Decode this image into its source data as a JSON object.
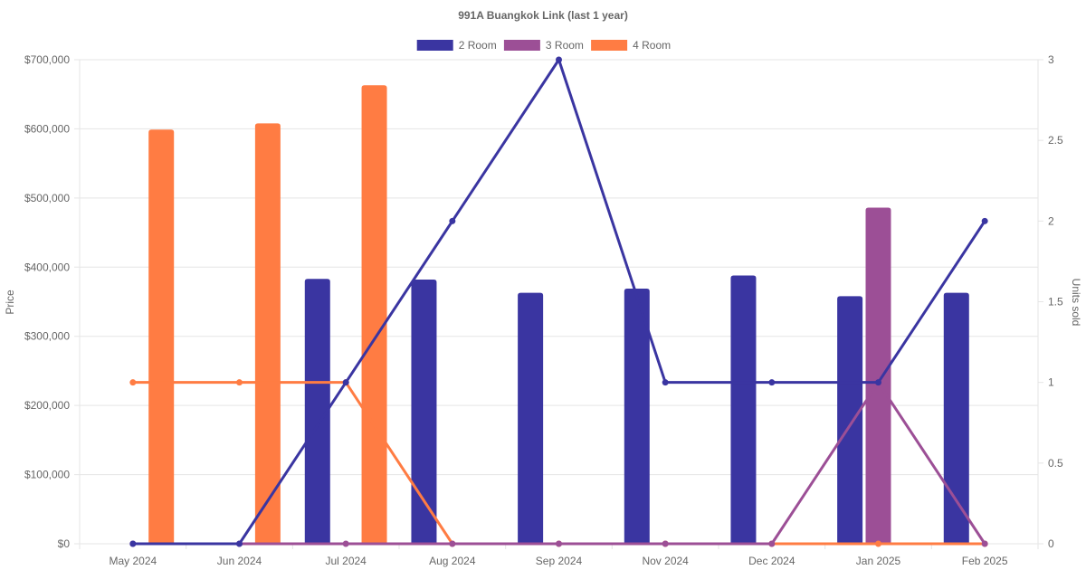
{
  "chart_data": {
    "type": "bar",
    "title": "991A Buangkok Link (last 1 year)",
    "categories": [
      "May 2024",
      "Jun 2024",
      "Jul 2024",
      "Aug 2024",
      "Sep 2024",
      "Nov 2024",
      "Dec 2024",
      "Jan 2025",
      "Feb 2025"
    ],
    "ylabel": "Price",
    "y2label": "Units sold",
    "ylim": [
      0,
      700000
    ],
    "y2lim": [
      0,
      3
    ],
    "yticks": [
      "$0",
      "$100,000",
      "$200,000",
      "$300,000",
      "$400,000",
      "$500,000",
      "$600,000",
      "$700,000"
    ],
    "y2ticks": [
      "0",
      "0.5",
      "1",
      "1.5",
      "2",
      "2.5",
      "3"
    ],
    "legend_position": "top",
    "grid": true,
    "series": [
      {
        "name": "2 Room",
        "color": "#3a35a1",
        "price": [
          null,
          null,
          383000,
          382000,
          363000,
          369000,
          388000,
          358000,
          363000
        ],
        "units": [
          0,
          0,
          1,
          2,
          3,
          1,
          1,
          1,
          2
        ]
      },
      {
        "name": "3 Room",
        "color": "#9c4f96",
        "price": [
          null,
          null,
          null,
          null,
          null,
          null,
          null,
          486000,
          null
        ],
        "units": [
          0,
          0,
          0,
          0,
          0,
          0,
          0,
          1,
          0
        ]
      },
      {
        "name": "4 Room",
        "color": "#ff7c43",
        "price": [
          599000,
          608000,
          663000,
          null,
          null,
          null,
          null,
          null,
          null
        ],
        "units": [
          1,
          1,
          1,
          0,
          0,
          0,
          0,
          0,
          0
        ]
      }
    ]
  }
}
